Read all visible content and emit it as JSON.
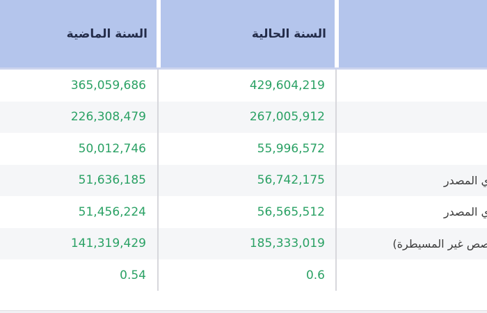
{
  "colors": {
    "header_bg": "#b4c5ec",
    "header_text": "#232c49",
    "value_green": "#2aa164",
    "row_alt_bg": "#f5f6f8",
    "label_text": "#3b3b3b",
    "separator": "#d7d7dc"
  },
  "table": {
    "header": {
      "previous_year": "السنة الماضية",
      "current_year": "السنة الحالية",
      "label_column": ""
    },
    "rows": [
      {
        "previous_year": "365,059,686",
        "current_year": "429,604,219",
        "label_fragment": ""
      },
      {
        "previous_year": "226,308,479",
        "current_year": "267,005,912",
        "label_fragment": ""
      },
      {
        "previous_year": "50,012,746",
        "current_year": "55,996,572",
        "label_fragment": ""
      },
      {
        "previous_year": "51,636,185",
        "current_year": "56,742,175",
        "label_fragment": "ي المصدر"
      },
      {
        "previous_year": "51,456,224",
        "current_year": "56,565,512",
        "label_fragment": "ي المصدر"
      },
      {
        "previous_year": "141,319,429",
        "current_year": "185,333,019",
        "label_fragment": "صص غير المسيطرة)"
      },
      {
        "previous_year": "0.54",
        "current_year": "0.6",
        "label_fragment": ""
      }
    ]
  }
}
